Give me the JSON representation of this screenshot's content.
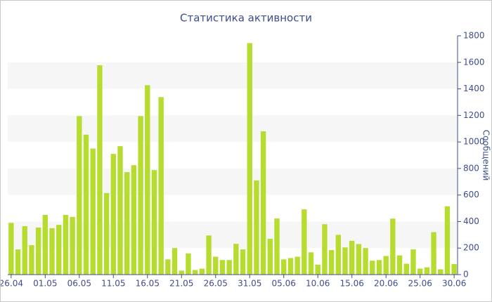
{
  "chart_data": {
    "type": "bar",
    "title": "Статистика активности",
    "y_axis_label": "Сообщений",
    "categories": [
      "26.04",
      null,
      null,
      null,
      null,
      "01.05",
      null,
      null,
      null,
      null,
      "06.05",
      null,
      null,
      null,
      null,
      "11.05",
      null,
      null,
      null,
      null,
      "16.05",
      null,
      null,
      null,
      null,
      "21.05",
      null,
      null,
      null,
      null,
      "26.05",
      null,
      null,
      null,
      null,
      "31.05",
      null,
      null,
      null,
      null,
      "05.06",
      null,
      null,
      null,
      null,
      "10.06",
      null,
      null,
      null,
      null,
      "15.06",
      null,
      null,
      null,
      null,
      "20.06",
      null,
      null,
      null,
      null,
      "25.06",
      null,
      null,
      null,
      null,
      "30.06"
    ],
    "values": [
      390,
      190,
      365,
      222,
      355,
      450,
      350,
      375,
      450,
      435,
      1195,
      1055,
      950,
      1578,
      615,
      910,
      968,
      772,
      825,
      1195,
      1428,
      788,
      1338,
      115,
      200,
      30,
      160,
      35,
      45,
      295,
      135,
      110,
      110,
      232,
      190,
      1745,
      710,
      1080,
      270,
      423,
      115,
      125,
      135,
      492,
      168,
      75,
      380,
      185,
      300,
      205,
      255,
      230,
      200,
      105,
      110,
      140,
      422,
      145,
      82,
      190,
      45,
      55,
      320,
      40,
      515,
      80
    ],
    "color": "#b5dc2f",
    "ylim": [
      0,
      1800
    ],
    "yticks": [
      0,
      200,
      400,
      600,
      800,
      1000,
      1200,
      1400,
      1600,
      1800
    ],
    "grid_bands": true,
    "y_axis_side": "right"
  }
}
